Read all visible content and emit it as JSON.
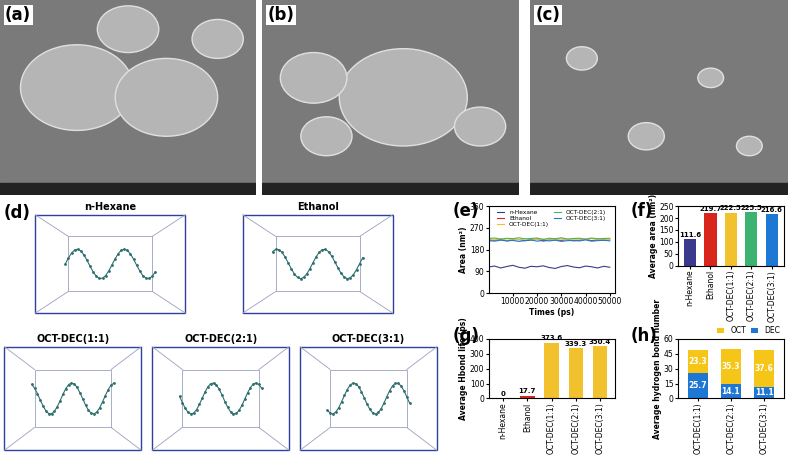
{
  "images": [
    {
      "label": "(a)"
    },
    {
      "label": "(b)"
    },
    {
      "label": "(c)"
    },
    {
      "label": "(d)",
      "snapshots": [
        "n-Hexane",
        "Ethanol",
        "OCT-DEC(1:1)",
        "OCT-DEC(2:1)",
        "OCT-DEC(3:1)"
      ]
    }
  ],
  "chart_data": [
    {
      "label": "(e)",
      "type": "line",
      "x_label": "Times (ps)",
      "y_label": "Area (nm²)",
      "x": [
        0,
        2500,
        5000,
        7500,
        10000,
        12500,
        15000,
        17500,
        20000,
        22500,
        25000,
        27500,
        30000,
        32500,
        35000,
        37500,
        40000,
        42500,
        45000,
        47500,
        50000
      ],
      "series": [
        {
          "name": "n-Hexane",
          "color": "#3a3a8c",
          "values": [
            108,
            112,
            104,
            110,
            115,
            107,
            103,
            111,
            109,
            113,
            106,
            102,
            110,
            114,
            108,
            105,
            112,
            109,
            104,
            111,
            107
          ]
        },
        {
          "name": "Ethanol",
          "color": "#d9261c",
          "values": [
            221,
            218,
            223,
            216,
            220,
            222,
            217,
            219,
            224,
            215,
            220,
            221,
            218,
            222,
            216,
            219,
            223,
            217,
            220,
            218,
            221
          ]
        },
        {
          "name": "OCT-DEC(1:1)",
          "color": "#f2c12e",
          "values": [
            224,
            220,
            225,
            219,
            223,
            221,
            226,
            220,
            222,
            224,
            219,
            223,
            225,
            221,
            220,
            224,
            222,
            226,
            219,
            223,
            222
          ]
        },
        {
          "name": "OCT-DEC(2:1)",
          "color": "#3cb371",
          "values": [
            226,
            228,
            223,
            227,
            225,
            229,
            224,
            226,
            228,
            222,
            227,
            225,
            229,
            224,
            226,
            227,
            223,
            228,
            225,
            226,
            227
          ]
        },
        {
          "name": "OCT-DEC(3:1)",
          "color": "#1f77d4",
          "values": [
            217,
            215,
            219,
            216,
            218,
            214,
            217,
            220,
            215,
            218,
            216,
            219,
            214,
            217,
            218,
            216,
            220,
            215,
            217,
            219,
            216
          ]
        }
      ],
      "xlim": [
        0,
        52000
      ],
      "xticks": [
        10000,
        20000,
        30000,
        40000,
        50000
      ],
      "ylim": [
        0,
        360
      ],
      "yticks": [
        0,
        90,
        180,
        270,
        360
      ],
      "legend": "upper center"
    },
    {
      "label": "(f)",
      "type": "bar",
      "y_label": "Average area (nm²)",
      "categories": [
        "n-Hexane",
        "Ethanol",
        "OCT-DEC(1:1)",
        "OCT-DEC(2:1)",
        "OCT-DEC(3:1)"
      ],
      "values": [
        111.6,
        219.7,
        222.5,
        225.5,
        216.6
      ],
      "colors": [
        "#3a3a8c",
        "#d9261c",
        "#f2c12e",
        "#3cb371",
        "#1f77d4"
      ],
      "ylim": [
        0,
        250
      ],
      "yticks": [
        0,
        50,
        100,
        150,
        200,
        250
      ],
      "data_labels": true
    },
    {
      "label": "(g)",
      "type": "bar",
      "y_label": "Average Hbond life (ps)",
      "categories": [
        "n-Hexane",
        "Ethanol",
        "OCT-DEC(1:1)",
        "OCT-DEC(2:1)",
        "OCT-DEC(3:1)"
      ],
      "values": [
        0,
        17.7,
        373.6,
        339.3,
        350.4
      ],
      "colors": [
        "#3a3a8c",
        "#d9261c",
        "#f2c12e",
        "#f2c12e",
        "#f2c12e"
      ],
      "ylim": [
        0,
        400
      ],
      "yticks": [
        0,
        100,
        200,
        300,
        400
      ],
      "data_labels": true
    },
    {
      "label": "(h)",
      "type": "bar",
      "stacked": true,
      "y_label": "Average hydrogen bond number",
      "categories": [
        "OCT-DEC(1:1)",
        "OCT-DEC(2:1)",
        "OCT-DEC(3:1)"
      ],
      "series": [
        {
          "name": "DEC",
          "color": "#1f77d4",
          "values": [
            25.7,
            14.1,
            11.1
          ]
        },
        {
          "name": "OCT",
          "color": "#f5c518",
          "values": [
            23.3,
            35.3,
            37.6
          ]
        }
      ],
      "ylim": [
        0,
        60
      ],
      "yticks": [
        0,
        15,
        30,
        45,
        60
      ],
      "data_labels": true,
      "legend": "upper right"
    }
  ]
}
